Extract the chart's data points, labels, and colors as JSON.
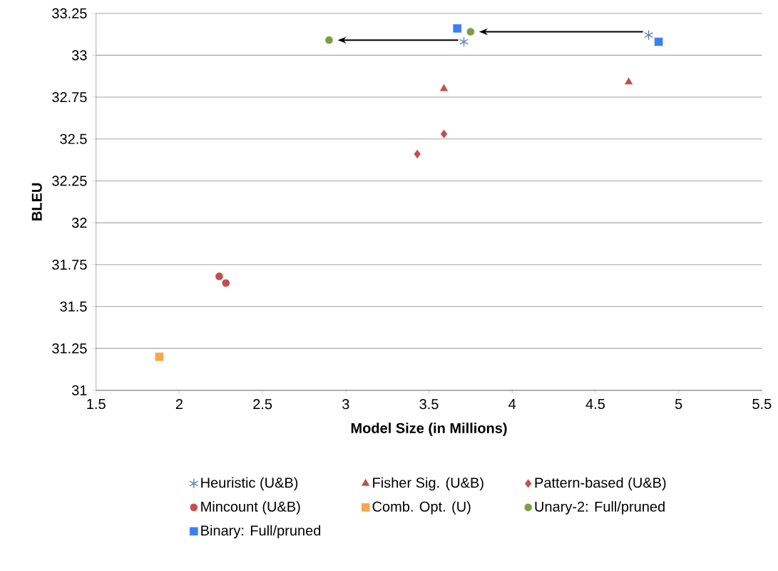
{
  "chart_data": {
    "type": "scatter",
    "xlabel": "Model Size (in Millions)",
    "ylabel": "BLEU",
    "xlim": [
      1.5,
      5.5
    ],
    "xticks": [
      1.5,
      2,
      2.5,
      3,
      3.5,
      4,
      4.5,
      5,
      5.5
    ],
    "ylim": [
      31,
      33.25
    ],
    "yticks": [
      31,
      31.25,
      31.5,
      31.75,
      32,
      32.25,
      32.5,
      32.75,
      33,
      33.25
    ],
    "grid": "y",
    "legend": "bottom",
    "series": [
      {
        "name": "Heuristic (U&B)",
        "color": "#5b7fb3",
        "marker": "cross",
        "x": [
          4.82,
          3.71
        ],
        "values": [
          33.12,
          33.08
        ]
      },
      {
        "name": "Fisher Sig. (U&B)",
        "color": "#c0504d",
        "marker": "triangle",
        "x": [
          3.59,
          4.7
        ],
        "values": [
          32.8,
          32.84
        ]
      },
      {
        "name": "Pattern-based (U&B)",
        "color": "#c0504d",
        "marker": "diamond",
        "x": [
          3.43,
          3.59
        ],
        "values": [
          32.41,
          32.53
        ]
      },
      {
        "name": "Mincount (U&B)",
        "color": "#c0504d",
        "marker": "circle",
        "x": [
          2.24,
          2.28
        ],
        "values": [
          31.68,
          31.64
        ]
      },
      {
        "name": "Comb. Opt. (U)",
        "color": "#f9a54f",
        "marker": "square",
        "x": [
          1.88
        ],
        "values": [
          31.2
        ]
      },
      {
        "name": "Unary-2: Full/pruned",
        "color": "#7f9d45",
        "marker": "circle",
        "x": [
          2.9,
          3.75
        ],
        "values": [
          33.09,
          33.14
        ]
      },
      {
        "name": "Binary: Full/pruned",
        "color": "#3b7ff5",
        "marker": "square",
        "x": [
          4.88,
          3.67
        ],
        "values": [
          33.08,
          33.16
        ]
      }
    ]
  }
}
